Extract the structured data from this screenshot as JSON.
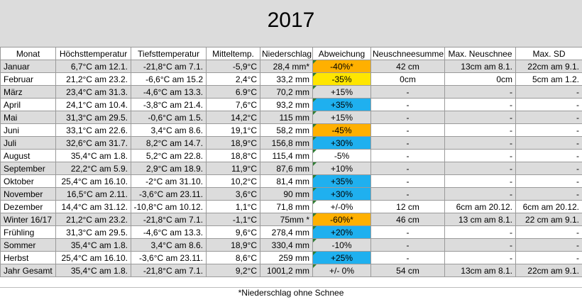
{
  "title": "2017",
  "colors": {
    "title_band": "#dcdcdc",
    "row_gray": "#dcdcdc",
    "orange": "#ffb000",
    "yellow": "#ffe600",
    "blue": "#1fb0ef"
  },
  "columns": [
    "Monat",
    "Höchsttemperatur",
    "Tiefsttemperatur",
    "Mitteltemp.",
    "Niederschlag",
    "Abweichung",
    "Neuschneesumme",
    "Max. Neuschnee",
    "Max. SD"
  ],
  "rows": [
    {
      "cells": [
        "Januar",
        "6,7°C am 12.1.",
        "-21,8°C am 7.1.",
        "-5,9°C",
        "28,4 mm*",
        "-40%*",
        "42 cm",
        "13cm am 8.1.",
        "22cm am 9.1."
      ],
      "gray": true,
      "abw": "orange"
    },
    {
      "cells": [
        "Februar",
        "21,2°C am 23.2.",
        "-6,6°C am 15.2",
        "2,4°C",
        "33,2 mm",
        "-35%",
        "0cm",
        "0cm",
        "5cm am 1.2."
      ],
      "gray": false,
      "abw": "yellow"
    },
    {
      "cells": [
        "März",
        "23,4°C am 31.3.",
        "-4,6°C am 13.3.",
        "6.9°C",
        "70,2 mm",
        "+15%",
        "-",
        "-",
        "-"
      ],
      "gray": true,
      "abw": ""
    },
    {
      "cells": [
        "April",
        "24,1°C am 10.4.",
        "-3,8°C am 21.4.",
        "7,6°C",
        "93,2 mm",
        "+35%",
        "-",
        "-",
        "-"
      ],
      "gray": false,
      "abw": "blue"
    },
    {
      "cells": [
        "Mai",
        "31,3°C am 29.5.",
        "-0,6°C am 1.5.",
        "14,2°C",
        "115 mm",
        "+15%",
        "-",
        "-",
        "-"
      ],
      "gray": true,
      "abw": ""
    },
    {
      "cells": [
        "Juni",
        "33,1°C am 22.6.",
        "3,4°C am 8.6.",
        "19,1°C",
        "58,2 mm",
        "-45%",
        "-",
        "-",
        "-"
      ],
      "gray": false,
      "abw": "orange"
    },
    {
      "cells": [
        "Juli",
        "32,6°C am 31.7.",
        "8,2°C am 14.7.",
        "18,9°C",
        "156,8 mm",
        "+30%",
        "-",
        "-",
        "-"
      ],
      "gray": true,
      "abw": "blue"
    },
    {
      "cells": [
        "August",
        "35,4°C am 1.8.",
        "5,2°C am 22.8.",
        "18,8°C",
        "115,4 mm",
        "-5%",
        "-",
        "-",
        "-"
      ],
      "gray": false,
      "abw": ""
    },
    {
      "cells": [
        "September",
        "22,2°C am 5.9.",
        "2,9°C am 18.9.",
        "11,9°C",
        "87,6 mm",
        "+10%",
        "-",
        "-",
        "-"
      ],
      "gray": true,
      "abw": ""
    },
    {
      "cells": [
        "Oktober",
        "25,4°C am 16.10.",
        "-2°C am 31.10.",
        "10,2°C",
        "81,4 mm",
        "+35%",
        "-",
        "-",
        "-"
      ],
      "gray": false,
      "abw": "blue"
    },
    {
      "cells": [
        "November",
        "16,5°C am 2.11.",
        "-3,6°C am 23.11.",
        "3,6°C",
        "90 mm",
        "+30%",
        "-",
        "-",
        "-"
      ],
      "gray": true,
      "abw": "blue"
    },
    {
      "cells": [
        "Dezember",
        "14,4°C am 31.12.",
        "-10,8°C am 10.12.",
        "1,1°C",
        "71,8 mm",
        "+/-0%",
        "12 cm",
        "6cm am 20.12.",
        "6cm am 20.12."
      ],
      "gray": false,
      "abw": ""
    },
    {
      "cells": [
        "Winter 16/17",
        "21,2°C am 23.2.",
        "-21,8°C am 7.1.",
        "-1,1°C",
        "75mm *",
        "-60%*",
        "46 cm",
        "13 cm am 8.1.",
        "22 cm am 9.1."
      ],
      "gray": true,
      "abw": "orange"
    },
    {
      "cells": [
        "Frühling",
        "31,3°C am 29.5.",
        "-4,6°C am 13.3.",
        "9,6°C",
        "278,4 mm",
        "+20%",
        "-",
        "-",
        "-"
      ],
      "gray": false,
      "abw": "blue"
    },
    {
      "cells": [
        "Sommer",
        "35,4°C am 1.8.",
        "3,4°C am 8.6.",
        "18,9°C",
        "330,4 mm",
        "-10%",
        "-",
        "-",
        "-"
      ],
      "gray": true,
      "abw": ""
    },
    {
      "cells": [
        "Herbst",
        "25,4°C am 16.10.",
        "-3,6°C am 23.11.",
        "8,6°C",
        "259 mm",
        "+25%",
        "-",
        "-",
        "-"
      ],
      "gray": false,
      "abw": "blue"
    },
    {
      "cells": [
        "Jahr Gesamt",
        "35,4°C am 1.8.",
        "-21,8°C am 7.1.",
        "9,2°C",
        "1001,2 mm",
        "+/- 0%",
        "54 cm",
        "13cm am 8.1.",
        "22cm am 9.1."
      ],
      "gray": true,
      "abw": ""
    }
  ],
  "footnote": "*Niederschlag ohne Schnee"
}
